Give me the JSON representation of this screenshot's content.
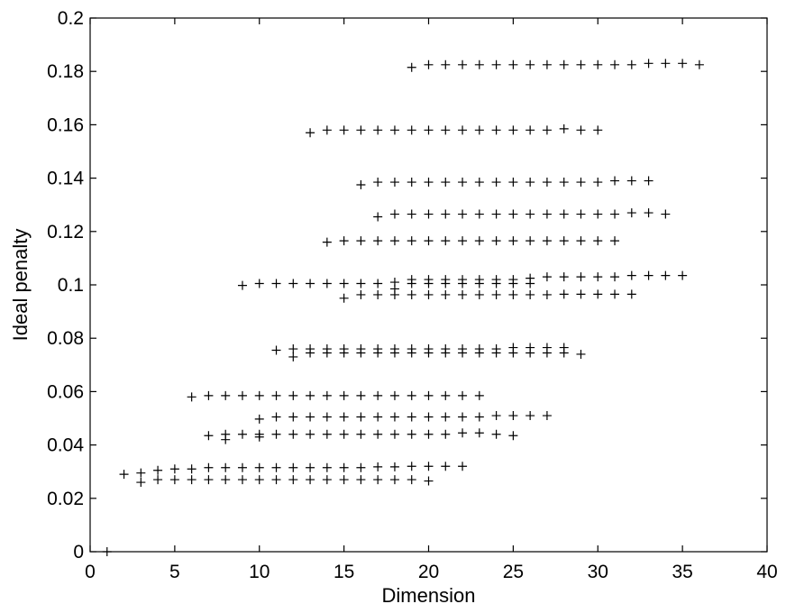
{
  "chart_data": {
    "type": "scatter",
    "title": "",
    "xlabel": "Dimension",
    "ylabel": "Ideal penalty",
    "xlim": [
      0,
      40
    ],
    "ylim": [
      0,
      0.2
    ],
    "xticks": [
      "0",
      "5",
      "10",
      "15",
      "20",
      "25",
      "30",
      "35",
      "40"
    ],
    "yticks": [
      "0",
      "0.02",
      "0.04",
      "0.06",
      "0.08",
      "0.1",
      "0.12",
      "0.14",
      "0.16",
      "0.18",
      "0.2"
    ],
    "grid": false,
    "marker": "+",
    "color": "#000000",
    "series": [
      {
        "points": [
          [
            1,
            0.0
          ],
          [
            2,
            0.029
          ],
          [
            3,
            0.0295
          ],
          [
            3,
            0.026
          ],
          [
            4,
            0.0305
          ],
          [
            4,
            0.027
          ],
          [
            5,
            0.031
          ],
          [
            5,
            0.027
          ],
          [
            6,
            0.031
          ],
          [
            6,
            0.027
          ],
          [
            7,
            0.0315
          ],
          [
            7,
            0.027
          ],
          [
            8,
            0.0315
          ],
          [
            8,
            0.027
          ],
          [
            9,
            0.0315
          ],
          [
            9,
            0.027
          ],
          [
            10,
            0.0315
          ],
          [
            10,
            0.027
          ],
          [
            11,
            0.0315
          ],
          [
            11,
            0.027
          ],
          [
            12,
            0.0315
          ],
          [
            12,
            0.027
          ],
          [
            13,
            0.0315
          ],
          [
            13,
            0.027
          ],
          [
            14,
            0.0315
          ],
          [
            14,
            0.027
          ],
          [
            15,
            0.0315
          ],
          [
            15,
            0.027
          ],
          [
            16,
            0.0315
          ],
          [
            16,
            0.027
          ],
          [
            17,
            0.0318
          ],
          [
            17,
            0.027
          ],
          [
            18,
            0.0318
          ],
          [
            18,
            0.027
          ],
          [
            19,
            0.032
          ],
          [
            19,
            0.027
          ],
          [
            20,
            0.032
          ],
          [
            20,
            0.0265
          ],
          [
            21,
            0.032
          ],
          [
            22,
            0.032
          ]
        ]
      },
      {
        "points": [
          [
            7,
            0.0435
          ],
          [
            8,
            0.044
          ],
          [
            8,
            0.042
          ],
          [
            9,
            0.044
          ],
          [
            10,
            0.044
          ],
          [
            10,
            0.043
          ],
          [
            11,
            0.044
          ],
          [
            12,
            0.044
          ],
          [
            13,
            0.044
          ],
          [
            14,
            0.044
          ],
          [
            15,
            0.044
          ],
          [
            16,
            0.044
          ],
          [
            17,
            0.044
          ],
          [
            18,
            0.044
          ],
          [
            19,
            0.044
          ],
          [
            20,
            0.044
          ],
          [
            21,
            0.044
          ],
          [
            22,
            0.0445
          ],
          [
            23,
            0.0445
          ],
          [
            24,
            0.044
          ],
          [
            25,
            0.0435
          ]
        ]
      },
      {
        "points": [
          [
            10,
            0.0497
          ],
          [
            11,
            0.0505
          ],
          [
            12,
            0.0505
          ],
          [
            13,
            0.0505
          ],
          [
            14,
            0.0505
          ],
          [
            15,
            0.0505
          ],
          [
            16,
            0.0505
          ],
          [
            17,
            0.0505
          ],
          [
            18,
            0.0505
          ],
          [
            19,
            0.0505
          ],
          [
            20,
            0.0505
          ],
          [
            21,
            0.0505
          ],
          [
            22,
            0.0505
          ],
          [
            23,
            0.0505
          ],
          [
            24,
            0.051
          ],
          [
            25,
            0.051
          ],
          [
            26,
            0.051
          ],
          [
            27,
            0.051
          ]
        ]
      },
      {
        "points": [
          [
            6,
            0.058
          ],
          [
            7,
            0.0585
          ],
          [
            8,
            0.0585
          ],
          [
            9,
            0.0585
          ],
          [
            10,
            0.0585
          ],
          [
            11,
            0.0585
          ],
          [
            12,
            0.0585
          ],
          [
            13,
            0.0585
          ],
          [
            14,
            0.0585
          ],
          [
            15,
            0.0585
          ],
          [
            16,
            0.0585
          ],
          [
            17,
            0.0585
          ],
          [
            18,
            0.0585
          ],
          [
            19,
            0.0585
          ],
          [
            20,
            0.0585
          ],
          [
            21,
            0.0585
          ],
          [
            22,
            0.0585
          ],
          [
            23,
            0.0585
          ]
        ]
      },
      {
        "points": [
          [
            11,
            0.0755
          ],
          [
            12,
            0.076
          ],
          [
            12,
            0.073
          ],
          [
            13,
            0.076
          ],
          [
            13,
            0.0745
          ],
          [
            14,
            0.076
          ],
          [
            14,
            0.0745
          ],
          [
            15,
            0.076
          ],
          [
            15,
            0.0745
          ],
          [
            16,
            0.076
          ],
          [
            16,
            0.0745
          ],
          [
            17,
            0.076
          ],
          [
            17,
            0.0745
          ],
          [
            18,
            0.076
          ],
          [
            18,
            0.0745
          ],
          [
            19,
            0.076
          ],
          [
            19,
            0.0745
          ],
          [
            20,
            0.076
          ],
          [
            20,
            0.0745
          ],
          [
            21,
            0.076
          ],
          [
            21,
            0.0745
          ],
          [
            22,
            0.076
          ],
          [
            22,
            0.0745
          ],
          [
            23,
            0.076
          ],
          [
            23,
            0.0745
          ],
          [
            24,
            0.076
          ],
          [
            24,
            0.0745
          ],
          [
            25,
            0.0765
          ],
          [
            25,
            0.0745
          ],
          [
            26,
            0.0765
          ],
          [
            26,
            0.0745
          ],
          [
            27,
            0.0765
          ],
          [
            27,
            0.0745
          ],
          [
            28,
            0.0765
          ],
          [
            28,
            0.0745
          ],
          [
            29,
            0.074
          ]
        ]
      },
      {
        "points": [
          [
            15,
            0.095
          ],
          [
            16,
            0.0963
          ],
          [
            17,
            0.0963
          ],
          [
            18,
            0.0963
          ],
          [
            19,
            0.0963
          ],
          [
            20,
            0.0963
          ],
          [
            21,
            0.0963
          ],
          [
            22,
            0.0963
          ],
          [
            23,
            0.0963
          ],
          [
            24,
            0.0963
          ],
          [
            25,
            0.0963
          ],
          [
            26,
            0.0963
          ],
          [
            27,
            0.0963
          ],
          [
            28,
            0.0965
          ],
          [
            29,
            0.0965
          ],
          [
            30,
            0.0965
          ],
          [
            31,
            0.0965
          ],
          [
            32,
            0.0965
          ]
        ]
      },
      {
        "points": [
          [
            9,
            0.0998
          ],
          [
            10,
            0.1005
          ],
          [
            11,
            0.1005
          ],
          [
            12,
            0.1005
          ],
          [
            13,
            0.1005
          ],
          [
            14,
            0.1005
          ],
          [
            15,
            0.1005
          ],
          [
            16,
            0.1005
          ],
          [
            17,
            0.1005
          ],
          [
            18,
            0.101
          ],
          [
            18,
            0.0985
          ],
          [
            19,
            0.102
          ],
          [
            19,
            0.1005
          ],
          [
            20,
            0.102
          ],
          [
            20,
            0.1005
          ],
          [
            21,
            0.102
          ],
          [
            21,
            0.1005
          ],
          [
            22,
            0.102
          ],
          [
            22,
            0.1005
          ],
          [
            23,
            0.102
          ],
          [
            23,
            0.1005
          ],
          [
            24,
            0.102
          ],
          [
            24,
            0.1005
          ],
          [
            25,
            0.102
          ],
          [
            25,
            0.1005
          ],
          [
            26,
            0.1025
          ],
          [
            26,
            0.1005
          ],
          [
            27,
            0.103
          ],
          [
            28,
            0.103
          ],
          [
            29,
            0.103
          ],
          [
            30,
            0.103
          ],
          [
            31,
            0.103
          ],
          [
            32,
            0.1035
          ],
          [
            33,
            0.1035
          ],
          [
            34,
            0.1035
          ],
          [
            35,
            0.1035
          ]
        ]
      },
      {
        "points": [
          [
            14,
            0.116
          ],
          [
            15,
            0.1165
          ],
          [
            16,
            0.1165
          ],
          [
            17,
            0.1165
          ],
          [
            18,
            0.1165
          ],
          [
            19,
            0.1165
          ],
          [
            20,
            0.1165
          ],
          [
            21,
            0.1165
          ],
          [
            22,
            0.1165
          ],
          [
            23,
            0.1165
          ],
          [
            24,
            0.1165
          ],
          [
            25,
            0.1165
          ],
          [
            26,
            0.1165
          ],
          [
            27,
            0.1165
          ],
          [
            28,
            0.1165
          ],
          [
            29,
            0.1165
          ],
          [
            30,
            0.1165
          ],
          [
            31,
            0.1165
          ]
        ]
      },
      {
        "points": [
          [
            17,
            0.1255
          ],
          [
            18,
            0.1265
          ],
          [
            19,
            0.1265
          ],
          [
            20,
            0.1265
          ],
          [
            21,
            0.1265
          ],
          [
            22,
            0.1265
          ],
          [
            23,
            0.1265
          ],
          [
            24,
            0.1265
          ],
          [
            25,
            0.1265
          ],
          [
            26,
            0.1265
          ],
          [
            27,
            0.1265
          ],
          [
            28,
            0.1265
          ],
          [
            29,
            0.1265
          ],
          [
            30,
            0.1265
          ],
          [
            31,
            0.1265
          ],
          [
            32,
            0.127
          ],
          [
            33,
            0.127
          ],
          [
            34,
            0.1265
          ]
        ]
      },
      {
        "points": [
          [
            16,
            0.1375
          ],
          [
            17,
            0.1385
          ],
          [
            18,
            0.1385
          ],
          [
            19,
            0.1385
          ],
          [
            20,
            0.1385
          ],
          [
            21,
            0.1385
          ],
          [
            22,
            0.1385
          ],
          [
            23,
            0.1385
          ],
          [
            24,
            0.1385
          ],
          [
            25,
            0.1385
          ],
          [
            26,
            0.1385
          ],
          [
            27,
            0.1385
          ],
          [
            28,
            0.1385
          ],
          [
            29,
            0.1385
          ],
          [
            30,
            0.1385
          ],
          [
            31,
            0.139
          ],
          [
            32,
            0.139
          ],
          [
            33,
            0.139
          ]
        ]
      },
      {
        "points": [
          [
            13,
            0.157
          ],
          [
            14,
            0.158
          ],
          [
            15,
            0.158
          ],
          [
            16,
            0.158
          ],
          [
            17,
            0.158
          ],
          [
            18,
            0.158
          ],
          [
            19,
            0.158
          ],
          [
            20,
            0.158
          ],
          [
            21,
            0.158
          ],
          [
            22,
            0.158
          ],
          [
            23,
            0.158
          ],
          [
            24,
            0.158
          ],
          [
            25,
            0.158
          ],
          [
            26,
            0.158
          ],
          [
            27,
            0.158
          ],
          [
            28,
            0.1585
          ],
          [
            29,
            0.158
          ],
          [
            30,
            0.158
          ]
        ]
      },
      {
        "points": [
          [
            19,
            0.1815
          ],
          [
            20,
            0.1825
          ],
          [
            21,
            0.1825
          ],
          [
            22,
            0.1825
          ],
          [
            23,
            0.1825
          ],
          [
            24,
            0.1825
          ],
          [
            25,
            0.1825
          ],
          [
            26,
            0.1825
          ],
          [
            27,
            0.1825
          ],
          [
            28,
            0.1825
          ],
          [
            29,
            0.1825
          ],
          [
            30,
            0.1825
          ],
          [
            31,
            0.1825
          ],
          [
            32,
            0.1825
          ],
          [
            33,
            0.183
          ],
          [
            34,
            0.183
          ],
          [
            35,
            0.183
          ],
          [
            36,
            0.1825
          ]
        ]
      }
    ]
  }
}
